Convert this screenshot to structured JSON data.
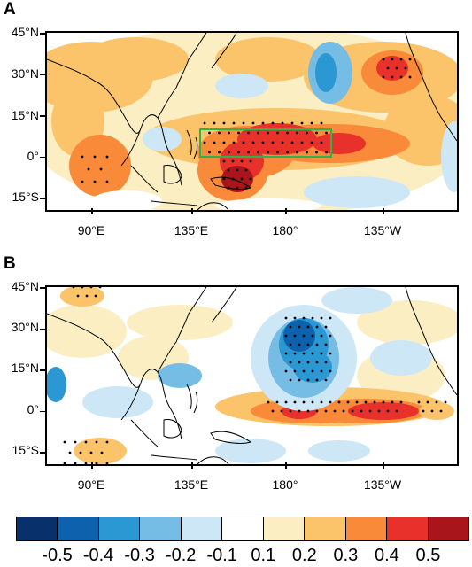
{
  "panels": [
    {
      "letter": "A",
      "box_color": "#2db34a"
    },
    {
      "letter": "B"
    }
  ],
  "lat_labels": [
    "45°N",
    "30°N",
    "15°N",
    "0°",
    "15°S"
  ],
  "lon_labels": [
    "90°E",
    "135°E",
    "180°",
    "135°W"
  ],
  "colorbar": {
    "colors": [
      "#08306b",
      "#0e62ad",
      "#2b97d3",
      "#76bde6",
      "#cde7f6",
      "#ffffff",
      "#fbeec2",
      "#fbc46b",
      "#f98a3a",
      "#e8312a",
      "#a8161c"
    ],
    "labels": [
      "-0.5",
      "-0.4",
      "-0.3",
      "-0.2",
      "-0.1",
      "0.1",
      "0.2",
      "0.3",
      "0.4",
      "0.5"
    ]
  }
}
